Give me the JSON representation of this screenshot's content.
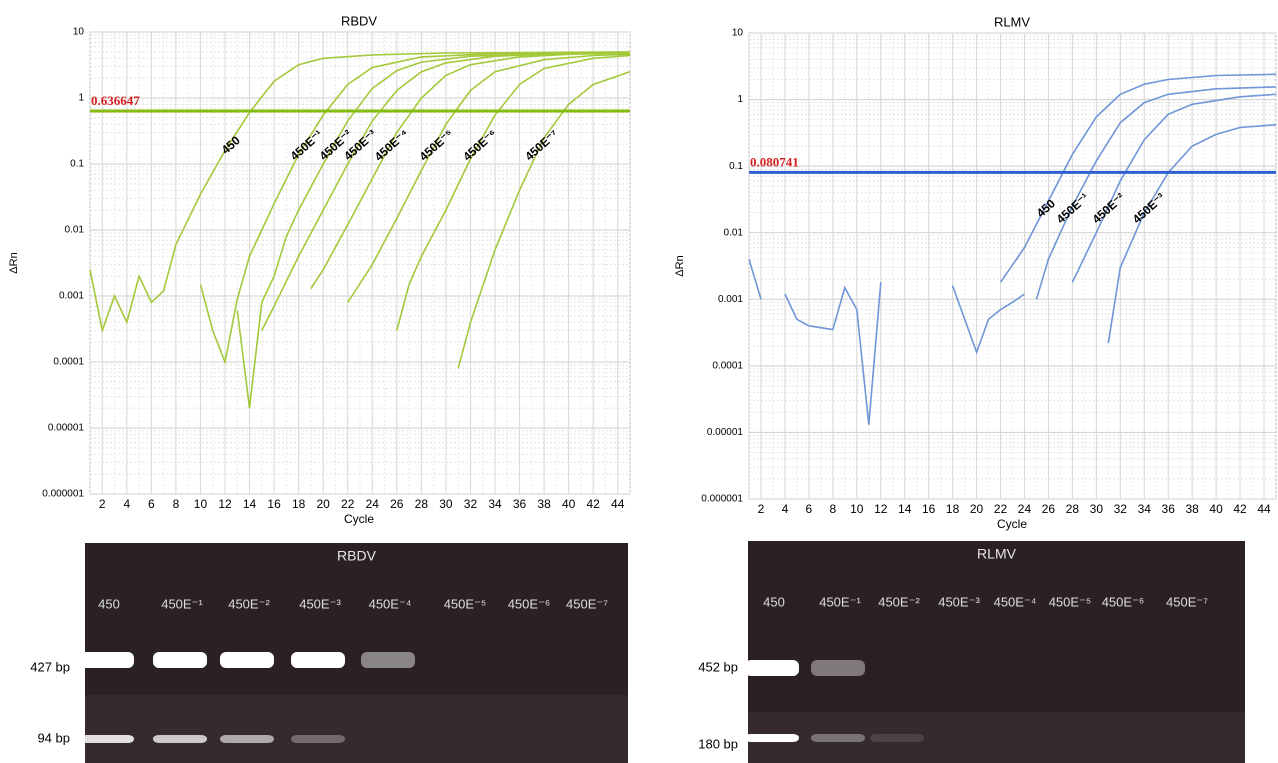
{
  "chart_data": [
    {
      "type": "line",
      "title": "RBDV",
      "x_label": "Cycle",
      "y_label": "ΔRn",
      "log_y": true,
      "grid": true,
      "threshold": 0.636647,
      "threshold_color": "#86bc10",
      "threshold_label_color": "#d42020",
      "xlim": [
        1,
        45
      ],
      "xticks": [
        2,
        4,
        6,
        8,
        10,
        12,
        14,
        16,
        18,
        20,
        22,
        24,
        26,
        28,
        30,
        32,
        34,
        36,
        38,
        40,
        42,
        44
      ],
      "ylim": [
        1e-06,
        10
      ],
      "yticks": [
        10,
        1,
        0.1,
        0.01,
        0.001,
        0.0001,
        1e-05,
        1e-06
      ],
      "series": [
        {
          "name": "450",
          "color": "#a3c93a",
          "x": [
            1,
            2,
            3,
            4,
            5,
            6,
            7,
            8,
            10,
            12,
            14,
            16,
            18,
            20,
            24,
            30,
            38,
            45
          ],
          "values": [
            0.0025,
            0.0003,
            0.001,
            0.0004,
            0.002,
            0.0008,
            0.0012,
            0.006,
            0.035,
            0.16,
            0.6,
            1.8,
            3.2,
            4.0,
            4.5,
            4.8,
            4.9,
            5.0
          ]
        },
        {
          "name": "450E⁻¹",
          "color": "#a3c93a",
          "x": [
            10,
            11,
            12,
            13,
            14,
            16,
            18,
            20,
            22,
            24,
            28,
            34,
            45
          ],
          "values": [
            0.0015,
            0.0003,
            0.0001,
            0.0009,
            0.004,
            0.025,
            0.14,
            0.55,
            1.6,
            2.9,
            4.2,
            4.7,
            4.9
          ]
        },
        {
          "name": "450E⁻²",
          "color": "#a3c93a",
          "x": [
            13,
            14,
            15,
            16,
            17,
            18,
            20,
            22,
            24,
            26,
            28,
            32,
            38,
            45
          ],
          "values": [
            0.0006,
            2e-05,
            0.0008,
            0.002,
            0.008,
            0.02,
            0.1,
            0.45,
            1.4,
            2.6,
            3.5,
            4.3,
            4.7,
            4.8
          ]
        },
        {
          "name": "450E⁻³",
          "color": "#a3c93a",
          "x": [
            15,
            16,
            18,
            20,
            22,
            24,
            26,
            28,
            30,
            34,
            40,
            45
          ],
          "values": [
            0.0003,
            0.0007,
            0.004,
            0.02,
            0.1,
            0.45,
            1.3,
            2.5,
            3.4,
            4.3,
            4.7,
            4.8
          ]
        },
        {
          "name": "450E⁻⁴",
          "color": "#a3c93a",
          "x": [
            19,
            20,
            22,
            24,
            26,
            28,
            30,
            32,
            36,
            40,
            45
          ],
          "values": [
            0.0013,
            0.0025,
            0.012,
            0.06,
            0.3,
            1.0,
            2.2,
            3.2,
            4.2,
            4.6,
            4.8
          ]
        },
        {
          "name": "450E⁻⁵",
          "color": "#a3c93a",
          "x": [
            22,
            24,
            26,
            28,
            30,
            32,
            34,
            38,
            42,
            45
          ],
          "values": [
            0.0008,
            0.003,
            0.015,
            0.08,
            0.4,
            1.3,
            2.5,
            3.8,
            4.4,
            4.6
          ]
        },
        {
          "name": "450E⁻⁶",
          "color": "#a3c93a",
          "x": [
            26,
            27,
            28,
            30,
            32,
            34,
            36,
            38,
            42,
            45
          ],
          "values": [
            0.0003,
            0.0015,
            0.004,
            0.02,
            0.12,
            0.55,
            1.6,
            2.8,
            4.0,
            4.4
          ]
        },
        {
          "name": "450E⁻⁷",
          "color": "#a3c93a",
          "x": [
            31,
            32,
            34,
            36,
            38,
            40,
            42,
            45
          ],
          "values": [
            8e-05,
            0.0004,
            0.005,
            0.04,
            0.25,
            0.8,
            1.6,
            2.5
          ]
        }
      ]
    },
    {
      "type": "line",
      "title": "RLMV",
      "x_label": "Cycle",
      "y_label": "ΔRn",
      "log_y": true,
      "grid": true,
      "threshold": 0.080741,
      "threshold_color": "#2f5fd0",
      "threshold_label_color": "#d42020",
      "xlim": [
        1,
        45
      ],
      "xticks": [
        2,
        4,
        6,
        8,
        10,
        12,
        14,
        16,
        18,
        20,
        22,
        24,
        26,
        28,
        30,
        32,
        34,
        36,
        38,
        40,
        42,
        44
      ],
      "ylim": [
        1e-06,
        10
      ],
      "yticks": [
        10,
        1,
        0.1,
        0.01,
        0.001,
        0.0001,
        1e-05,
        1e-06
      ],
      "series": [
        {
          "name": "450",
          "color": "#6f96d8",
          "x": [
            22,
            24,
            26,
            28,
            30,
            32,
            34,
            36,
            40,
            45
          ],
          "values": [
            0.0018,
            0.006,
            0.03,
            0.15,
            0.55,
            1.2,
            1.7,
            2.0,
            2.3,
            2.4
          ]
        },
        {
          "name": "450E⁻¹",
          "color": "#6f96d8",
          "x": [
            25,
            26,
            28,
            30,
            32,
            34,
            36,
            40,
            45
          ],
          "values": [
            0.001,
            0.004,
            0.025,
            0.12,
            0.45,
            0.9,
            1.2,
            1.45,
            1.55
          ]
        },
        {
          "name": "450E⁻²",
          "color": "#6f96d8",
          "x": [
            28,
            30,
            32,
            34,
            36,
            38,
            42,
            45
          ],
          "values": [
            0.0018,
            0.01,
            0.06,
            0.25,
            0.6,
            0.85,
            1.1,
            1.2
          ]
        },
        {
          "name": "450E⁻³",
          "color": "#6f96d8",
          "x": [
            31,
            32,
            34,
            36,
            38,
            40,
            42,
            45
          ],
          "values": [
            0.00022,
            0.003,
            0.02,
            0.08,
            0.2,
            0.3,
            0.38,
            0.42
          ]
        },
        {
          "color": "#6f96d8",
          "x": [
            1,
            2,
            3,
            4,
            5,
            6,
            8,
            9,
            10,
            11,
            12,
            15,
            18,
            20,
            21,
            22,
            23,
            24
          ],
          "values": [
            0.004,
            0.001,
            null,
            0.0012,
            0.0005,
            0.0004,
            0.00035,
            0.0015,
            0.0007,
            1.3e-05,
            0.0018,
            null,
            0.0016,
            0.00016,
            0.0005,
            0.0007,
            0.0009,
            0.0012
          ]
        }
      ]
    }
  ],
  "gels": [
    {
      "title": "RBDV",
      "lanes": [
        "450",
        "450E⁻¹",
        "450E⁻²",
        "450E⁻³",
        "450E⁻⁴",
        "450E⁻⁵",
        "450E⁻⁶",
        "450E⁻⁷"
      ],
      "markers": [
        "427 bp",
        "94 bp"
      ]
    },
    {
      "title": "RLMV",
      "lanes": [
        "450",
        "450E⁻¹",
        "450E⁻²",
        "450E⁻³",
        "450E⁻⁴",
        "450E⁻⁵",
        "450E⁻⁶",
        "450E⁻⁷"
      ],
      "markers": [
        "452 bp",
        "180 bp"
      ]
    }
  ]
}
